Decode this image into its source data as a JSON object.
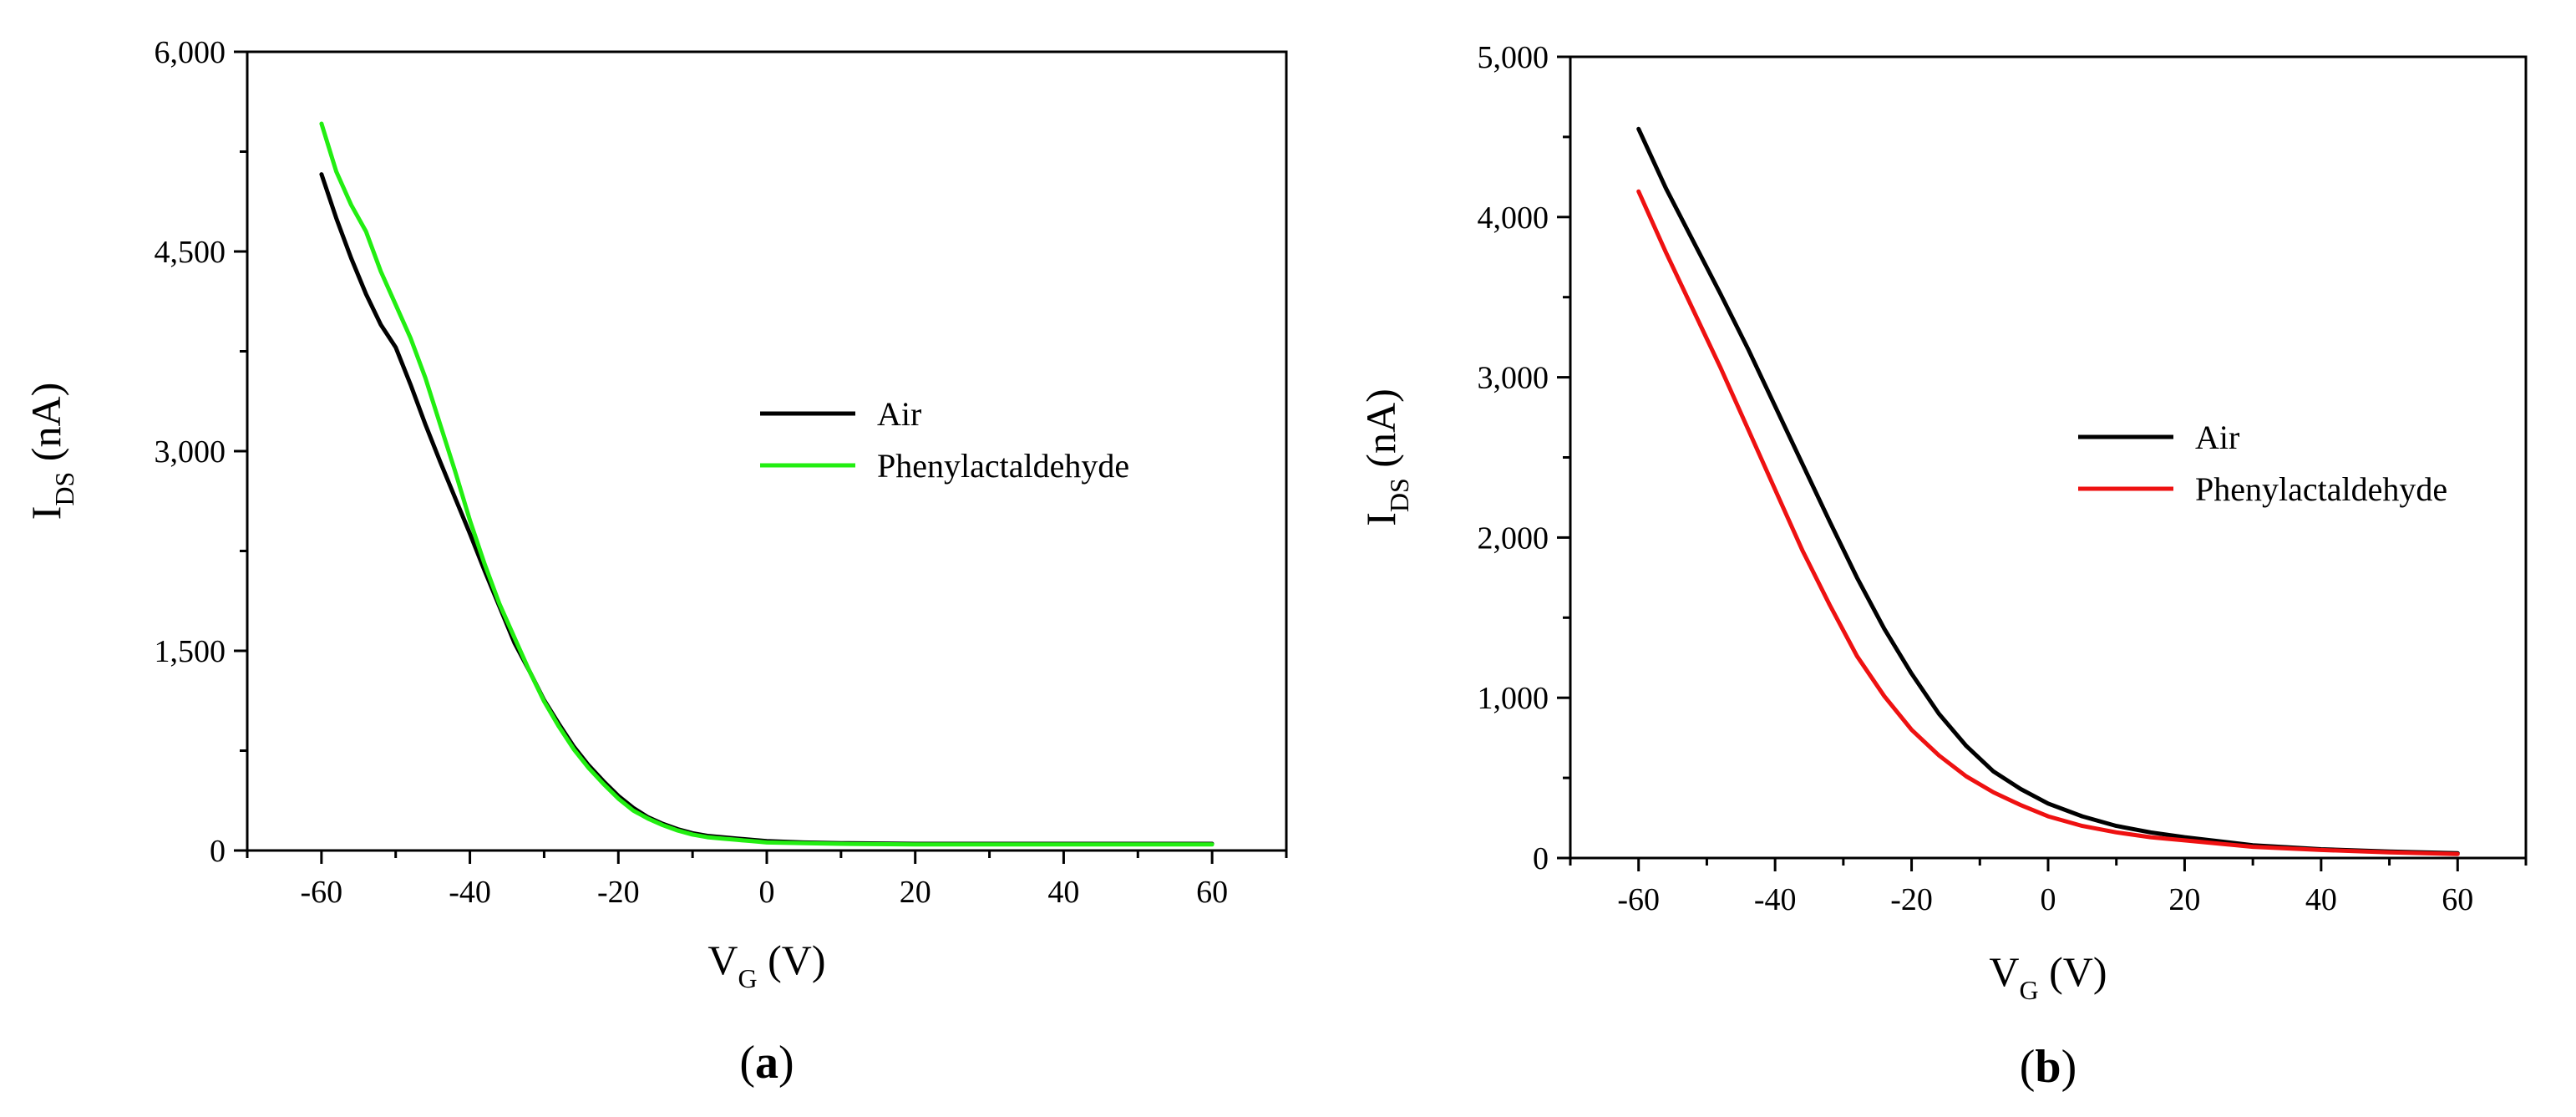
{
  "chart_data": [
    {
      "type": "line",
      "panel_label": "a",
      "xlabel": {
        "main": "V",
        "sub": "G",
        "unit": "(V)"
      },
      "ylabel": {
        "main": "I",
        "sub": "DS",
        "unit": "(nA)"
      },
      "xlim": [
        -70,
        70
      ],
      "ylim": [
        0,
        6000
      ],
      "xticks": [
        -60,
        -40,
        -20,
        0,
        20,
        40,
        60
      ],
      "xtick_labels": [
        "-60",
        "-40",
        "-20",
        "0",
        "20",
        "40",
        "60"
      ],
      "yticks": [
        0,
        1500,
        3000,
        4500,
        6000
      ],
      "ytick_labels": [
        "0",
        "1,500",
        "3,000",
        "4,500",
        "6,000"
      ],
      "grid": false,
      "legend_position": "center-right",
      "series": [
        {
          "name": "Air",
          "color": "#000000",
          "x": [
            -60,
            -58,
            -56,
            -54,
            -52,
            -50,
            -48,
            -46,
            -44,
            -42,
            -40,
            -38,
            -36,
            -34,
            -32,
            -30,
            -28,
            -26,
            -24,
            -22,
            -20,
            -18,
            -16,
            -14,
            -12,
            -10,
            -8,
            -6,
            -4,
            -2,
            0,
            5,
            10,
            20,
            30,
            40,
            50,
            60
          ],
          "y": [
            5080,
            4750,
            4450,
            4180,
            3950,
            3780,
            3500,
            3200,
            2920,
            2650,
            2380,
            2100,
            1830,
            1560,
            1350,
            1130,
            950,
            780,
            640,
            520,
            410,
            320,
            250,
            200,
            160,
            130,
            110,
            100,
            90,
            80,
            70,
            60,
            55,
            50,
            50,
            50,
            50,
            50
          ]
        },
        {
          "name": "Phenylactaldehyde",
          "color": "#22ee11",
          "x": [
            -60,
            -58,
            -56,
            -54,
            -52,
            -50,
            -48,
            -46,
            -44,
            -42,
            -40,
            -38,
            -36,
            -34,
            -32,
            -30,
            -28,
            -26,
            -24,
            -22,
            -20,
            -18,
            -16,
            -14,
            -12,
            -10,
            -8,
            -6,
            -4,
            -2,
            0,
            5,
            10,
            20,
            30,
            40,
            50,
            60
          ],
          "y": [
            5460,
            5100,
            4850,
            4650,
            4350,
            4100,
            3850,
            3550,
            3200,
            2850,
            2480,
            2150,
            1850,
            1600,
            1350,
            1120,
            930,
            760,
            620,
            500,
            390,
            300,
            240,
            190,
            150,
            120,
            100,
            90,
            80,
            70,
            60,
            55,
            50,
            45,
            45,
            45,
            45,
            45
          ]
        }
      ]
    },
    {
      "type": "line",
      "panel_label": "b",
      "xlabel": {
        "main": "V",
        "sub": "G",
        "unit": "(V)"
      },
      "ylabel": {
        "main": "I",
        "sub": "DS",
        "unit": "(nA)"
      },
      "xlim": [
        -70,
        70
      ],
      "ylim": [
        0,
        5000
      ],
      "xticks": [
        -60,
        -40,
        -20,
        0,
        20,
        40,
        60
      ],
      "xtick_labels": [
        "-60",
        "-40",
        "-20",
        "0",
        "20",
        "40",
        "60"
      ],
      "yticks": [
        0,
        1000,
        2000,
        3000,
        4000,
        5000
      ],
      "ytick_labels": [
        "0",
        "1,000",
        "2,000",
        "3,000",
        "4,000",
        "5,000"
      ],
      "grid": false,
      "legend_position": "center-right",
      "series": [
        {
          "name": "Air",
          "color": "#000000",
          "x": [
            -60,
            -56,
            -52,
            -48,
            -44,
            -40,
            -36,
            -32,
            -28,
            -24,
            -20,
            -16,
            -12,
            -8,
            -4,
            0,
            5,
            10,
            15,
            20,
            30,
            40,
            50,
            60
          ],
          "y": [
            4550,
            4180,
            3850,
            3520,
            3180,
            2820,
            2460,
            2100,
            1750,
            1430,
            1150,
            900,
            700,
            540,
            430,
            340,
            260,
            200,
            160,
            130,
            80,
            55,
            40,
            30
          ]
        },
        {
          "name": "Phenylactaldehyde",
          "color": "#ee1111",
          "x": [
            -60,
            -56,
            -52,
            -48,
            -44,
            -40,
            -36,
            -32,
            -28,
            -24,
            -20,
            -16,
            -12,
            -8,
            -4,
            0,
            5,
            10,
            15,
            20,
            30,
            40,
            50,
            60
          ],
          "y": [
            4160,
            3780,
            3420,
            3060,
            2680,
            2300,
            1920,
            1580,
            1260,
            1010,
            800,
            640,
            510,
            410,
            330,
            260,
            200,
            160,
            130,
            110,
            70,
            50,
            35,
            25
          ]
        }
      ]
    }
  ]
}
